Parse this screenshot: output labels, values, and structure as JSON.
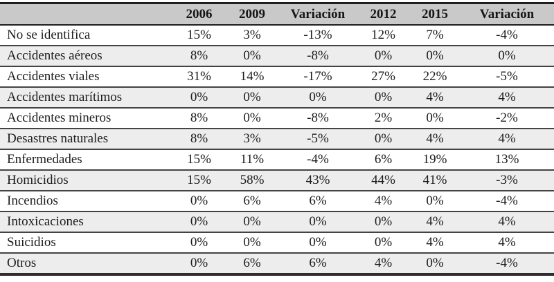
{
  "chart_data": {
    "type": "table",
    "columns": [
      "",
      "2006",
      "2009",
      "Variación",
      "2012",
      "2015",
      "Variación"
    ],
    "rows": [
      {
        "label": "No se identifica",
        "values": [
          "15%",
          "3%",
          "-13%",
          "12%",
          "7%",
          "-4%"
        ]
      },
      {
        "label": "Accidentes aéreos",
        "values": [
          "8%",
          "0%",
          "-8%",
          "0%",
          "0%",
          "0%"
        ]
      },
      {
        "label": "Accidentes viales",
        "values": [
          "31%",
          "14%",
          "-17%",
          "27%",
          "22%",
          "-5%"
        ]
      },
      {
        "label": "Accidentes marítimos",
        "values": [
          "0%",
          "0%",
          "0%",
          "0%",
          "4%",
          "4%"
        ]
      },
      {
        "label": "Accidentes mineros",
        "values": [
          "8%",
          "0%",
          "-8%",
          "2%",
          "0%",
          "-2%"
        ]
      },
      {
        "label": "Desastres naturales",
        "values": [
          "8%",
          "3%",
          "-5%",
          "0%",
          "4%",
          "4%"
        ]
      },
      {
        "label": "Enfermedades",
        "values": [
          "15%",
          "11%",
          "-4%",
          "6%",
          "19%",
          "13%"
        ]
      },
      {
        "label": "Homicidios",
        "values": [
          "15%",
          "58%",
          "43%",
          "44%",
          "41%",
          "-3%"
        ]
      },
      {
        "label": "Incendios",
        "values": [
          "0%",
          "6%",
          "6%",
          "4%",
          "0%",
          "-4%"
        ]
      },
      {
        "label": "Intoxicaciones",
        "values": [
          "0%",
          "0%",
          "0%",
          "0%",
          "4%",
          "4%"
        ]
      },
      {
        "label": "Suicidios",
        "values": [
          "0%",
          "0%",
          "0%",
          "0%",
          "4%",
          "4%"
        ]
      },
      {
        "label": "Otros",
        "values": [
          "0%",
          "6%",
          "6%",
          "4%",
          "0%",
          "-4%"
        ]
      }
    ],
    "layout": {
      "legend": "none",
      "grid": "horizontal-rules",
      "header_background": "#c9c9c9",
      "alt_row_background": "#ededed",
      "rule_color": "#434343",
      "frame_color": "#1f1f1f",
      "text_color": "#1c1c1c"
    }
  }
}
